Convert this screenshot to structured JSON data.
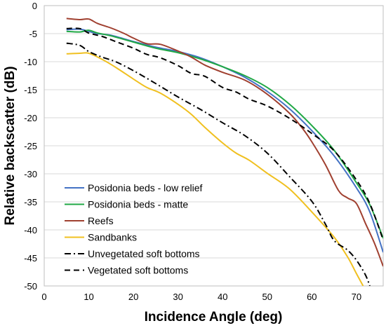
{
  "chart_data": {
    "type": "line",
    "title": "",
    "xlabel": "Incidence Angle (deg)",
    "ylabel": "Relative backscatter (dB)",
    "xlim": [
      0,
      76
    ],
    "ylim": [
      -50,
      0
    ],
    "xticks": [
      0,
      10,
      20,
      30,
      40,
      50,
      60,
      70
    ],
    "yticks": [
      0,
      -5,
      -10,
      -15,
      -20,
      -25,
      -30,
      -35,
      -40,
      -45,
      -50
    ],
    "grid": "horizontal",
    "legend_position": "bottom-left",
    "series": [
      {
        "name": "Posidonia beds - low relief",
        "color": "#4472c4",
        "dash": "solid",
        "points": [
          [
            5,
            -4.3
          ],
          [
            8,
            -4.2
          ],
          [
            10,
            -4.6
          ],
          [
            12,
            -5.0
          ],
          [
            15,
            -5.3
          ],
          [
            20,
            -6.4
          ],
          [
            25,
            -7.4
          ],
          [
            30,
            -8.2
          ],
          [
            35,
            -9.3
          ],
          [
            40,
            -10.9
          ],
          [
            45,
            -12.8
          ],
          [
            50,
            -15.3
          ],
          [
            55,
            -18.4
          ],
          [
            60,
            -22.3
          ],
          [
            65,
            -26.8
          ],
          [
            70,
            -32.5
          ],
          [
            73,
            -36.8
          ],
          [
            76,
            -44.0
          ]
        ]
      },
      {
        "name": "Posidonia beds - matte",
        "color": "#20a845",
        "dash": "solid",
        "points": [
          [
            5,
            -4.6
          ],
          [
            8,
            -4.7
          ],
          [
            10,
            -4.4
          ],
          [
            12,
            -4.9
          ],
          [
            15,
            -5.4
          ],
          [
            20,
            -6.5
          ],
          [
            25,
            -7.6
          ],
          [
            30,
            -8.4
          ],
          [
            35,
            -9.5
          ],
          [
            40,
            -10.9
          ],
          [
            45,
            -12.5
          ],
          [
            50,
            -14.6
          ],
          [
            55,
            -17.6
          ],
          [
            60,
            -21.4
          ],
          [
            65,
            -25.8
          ],
          [
            70,
            -31.6
          ],
          [
            73,
            -35.5
          ],
          [
            76,
            -41.5
          ]
        ]
      },
      {
        "name": "Reefs",
        "color": "#a04030",
        "dash": "solid",
        "points": [
          [
            5,
            -2.3
          ],
          [
            8,
            -2.5
          ],
          [
            10,
            -2.4
          ],
          [
            12,
            -3.2
          ],
          [
            15,
            -4.0
          ],
          [
            18,
            -5.0
          ],
          [
            20,
            -5.8
          ],
          [
            23,
            -6.8
          ],
          [
            26,
            -6.9
          ],
          [
            30,
            -8.1
          ],
          [
            33,
            -9.2
          ],
          [
            36,
            -10.6
          ],
          [
            40,
            -11.9
          ],
          [
            45,
            -13.3
          ],
          [
            50,
            -15.8
          ],
          [
            55,
            -19.2
          ],
          [
            58,
            -22.0
          ],
          [
            60,
            -24.3
          ],
          [
            63,
            -28.3
          ],
          [
            66,
            -33.0
          ],
          [
            68,
            -34.3
          ],
          [
            70,
            -35.3
          ],
          [
            72,
            -38.8
          ],
          [
            74,
            -42.3
          ],
          [
            76,
            -46.5
          ]
        ]
      },
      {
        "name": "Sandbanks",
        "color": "#f0c020",
        "dash": "solid",
        "points": [
          [
            5,
            -8.6
          ],
          [
            8,
            -8.5
          ],
          [
            10,
            -8.5
          ],
          [
            13,
            -9.6
          ],
          [
            16,
            -11.0
          ],
          [
            20,
            -13.1
          ],
          [
            23,
            -14.6
          ],
          [
            26,
            -15.6
          ],
          [
            30,
            -17.6
          ],
          [
            33,
            -19.4
          ],
          [
            36,
            -21.7
          ],
          [
            40,
            -24.5
          ],
          [
            43,
            -26.3
          ],
          [
            46,
            -27.6
          ],
          [
            50,
            -29.9
          ],
          [
            55,
            -32.7
          ],
          [
            60,
            -36.8
          ],
          [
            65,
            -41.3
          ],
          [
            68,
            -44.8
          ],
          [
            70,
            -47.8
          ],
          [
            71.5,
            -50.0
          ]
        ]
      },
      {
        "name": "Unvegetated soft bottoms",
        "color": "#000000",
        "dash": "dashdot",
        "points": [
          [
            5,
            -6.7
          ],
          [
            8,
            -7.1
          ],
          [
            10,
            -8.2
          ],
          [
            13,
            -9.2
          ],
          [
            16,
            -10.0
          ],
          [
            20,
            -11.6
          ],
          [
            25,
            -13.9
          ],
          [
            30,
            -16.3
          ],
          [
            35,
            -18.5
          ],
          [
            40,
            -20.9
          ],
          [
            45,
            -23.2
          ],
          [
            50,
            -26.3
          ],
          [
            55,
            -30.5
          ],
          [
            60,
            -34.9
          ],
          [
            63,
            -38.9
          ],
          [
            65,
            -41.9
          ],
          [
            68,
            -43.6
          ],
          [
            70,
            -45.4
          ],
          [
            72,
            -48.0
          ],
          [
            73,
            -50.0
          ]
        ]
      },
      {
        "name": "Vegetated soft bottoms",
        "color": "#000000",
        "dash": "dashed",
        "points": [
          [
            5,
            -4.1
          ],
          [
            8,
            -4.1
          ],
          [
            10,
            -4.9
          ],
          [
            13,
            -5.5
          ],
          [
            16,
            -6.4
          ],
          [
            20,
            -7.6
          ],
          [
            23,
            -8.7
          ],
          [
            26,
            -9.3
          ],
          [
            30,
            -10.7
          ],
          [
            33,
            -12.1
          ],
          [
            36,
            -12.6
          ],
          [
            40,
            -14.6
          ],
          [
            43,
            -15.4
          ],
          [
            46,
            -16.7
          ],
          [
            50,
            -17.9
          ],
          [
            55,
            -20.1
          ],
          [
            60,
            -22.8
          ],
          [
            65,
            -25.9
          ],
          [
            70,
            -31.1
          ],
          [
            73,
            -35.3
          ],
          [
            76,
            -41.8
          ]
        ]
      }
    ]
  }
}
